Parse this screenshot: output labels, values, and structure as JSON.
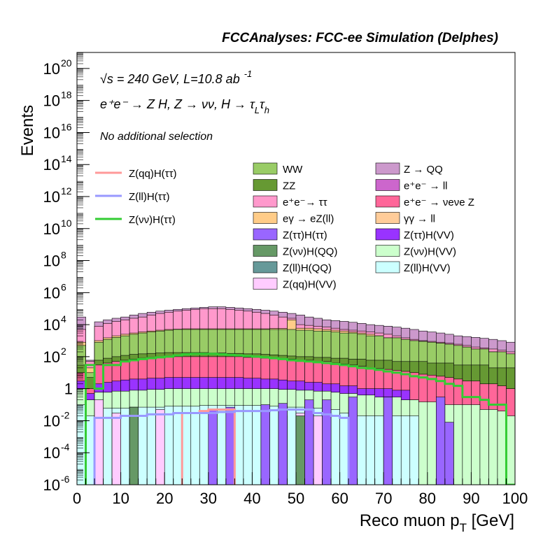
{
  "header_title": "FCCAnalyses: FCC-ee Simulation (Delphes)",
  "annotations": {
    "energy_sqrt": "√s",
    "energy_text": " = 240 GeV, L=10.8 ab",
    "lumi_exp": "-1",
    "process": "e⁺e⁻ → Z H, Z → νν, H → τ",
    "process_sub_L": "L",
    "process_tau2": "τ",
    "process_sub_h": "h",
    "selection": "No additional selection"
  },
  "chart_data": {
    "type": "histogram",
    "title": "FCCAnalyses: FCC-ee Simulation (Delphes)",
    "xlabel": "Reco muon p",
    "xlabel_sub": "T",
    "xlabel_unit": " [GeV]",
    "ylabel": "Events",
    "xlim": [
      0,
      100
    ],
    "ylim": [
      1e-06,
      1e+21
    ],
    "log_y": true,
    "grid": false,
    "bin_width": 2,
    "x_ticks": [
      "0",
      "10",
      "20",
      "30",
      "40",
      "50",
      "60",
      "70",
      "80",
      "90",
      "100"
    ],
    "y_ticks": [
      {
        "base": "10",
        "exp": "-6",
        "v": 1e-06
      },
      {
        "base": "10",
        "exp": "-4",
        "v": 0.0001
      },
      {
        "base": "10",
        "exp": "-2",
        "v": 0.01
      },
      {
        "base": "1",
        "exp": "",
        "v": 1
      },
      {
        "base": "10",
        "exp": "2",
        "v": 100.0
      },
      {
        "base": "10",
        "exp": "4",
        "v": 10000.0
      },
      {
        "base": "10",
        "exp": "6",
        "v": 1000000.0
      },
      {
        "base": "10",
        "exp": "8",
        "v": 100000000.0
      },
      {
        "base": "10",
        "exp": "10",
        "v": 10000000000.0
      },
      {
        "base": "10",
        "exp": "12",
        "v": 1000000000000.0
      },
      {
        "base": "10",
        "exp": "14",
        "v": 100000000000000.0
      },
      {
        "base": "10",
        "exp": "16",
        "v": 1e+16
      },
      {
        "base": "10",
        "exp": "18",
        "v": 1e+18
      },
      {
        "base": "10",
        "exp": "20",
        "v": 1e+20
      }
    ],
    "stack_totals": [
      {
        "name": "Z(ll)H(VV)",
        "color": "#ccffff",
        "values": [
          0.1,
          0.02,
          0.06,
          0.06,
          0.06,
          0.06,
          0.07,
          0.07,
          0.07,
          0.07,
          0.08,
          0.08,
          0.08,
          0.08,
          0.09,
          0.09,
          0.09,
          0.09,
          0.09,
          0.09,
          0.09,
          0.08,
          0.08,
          0.08,
          0.07,
          0.07,
          0.06,
          0.06,
          0.05,
          0.05,
          0.03,
          0.03,
          0.02,
          0.02,
          0.02,
          0.02,
          0.02,
          0.02,
          0.02,
          null,
          null,
          null,
          null,
          null,
          null,
          null,
          null,
          null,
          null,
          null
        ]
      },
      {
        "name": "Z(νν)H(VV)",
        "color": "#ccffcc",
        "values": [
          1,
          0.2,
          0.6,
          0.6,
          0.7,
          0.7,
          0.8,
          0.8,
          0.9,
          0.9,
          1,
          1,
          1,
          1,
          1,
          1,
          1,
          1,
          1,
          1,
          1,
          1,
          1,
          0.9,
          0.9,
          0.8,
          0.8,
          0.7,
          0.7,
          0.6,
          0.5,
          0.5,
          0.4,
          0.4,
          0.3,
          0.3,
          0.3,
          0.2,
          0.2,
          0.15,
          0.15,
          0.12,
          0.1,
          0.1,
          0.1,
          0.1,
          0.05,
          0.05,
          0.04,
          0.02
        ]
      },
      {
        "name": "Z(ττ)H(VV)",
        "color": "#9933ff",
        "values": [
          3,
          0.5,
          2,
          2.5,
          3,
          3.5,
          4,
          4,
          4.5,
          4.5,
          5,
          5,
          5,
          5,
          5,
          5,
          5,
          5,
          5,
          4.5,
          4.5,
          4,
          4,
          3.5,
          3,
          3,
          2.5,
          2.5,
          2,
          2,
          1.5,
          1.5,
          1,
          1,
          1,
          1,
          0.8,
          0.8,
          0.2,
          0.1,
          0.1,
          0.1,
          0.05,
          0.05,
          0.05,
          0.02,
          0.01,
          0.01,
          0.01,
          0.01
        ]
      },
      {
        "name": "e⁺e⁻ → νeνe Z",
        "color": "#ff6699",
        "values": [
          10,
          1,
          30,
          40,
          50,
          60,
          70,
          80,
          90,
          100,
          100,
          100,
          100,
          100,
          100,
          100,
          100,
          100,
          100,
          90,
          90,
          80,
          80,
          70,
          70,
          60,
          60,
          50,
          50,
          40,
          35,
          30,
          25,
          20,
          18,
          16,
          14,
          12,
          10,
          8,
          7,
          6,
          5,
          4,
          3,
          3,
          2,
          2,
          1.5,
          1
        ]
      },
      {
        "name": "ZZ",
        "color": "#669933",
        "values": [
          30,
          5,
          60,
          80,
          100,
          120,
          140,
          150,
          160,
          170,
          180,
          180,
          180,
          180,
          180,
          170,
          170,
          160,
          160,
          150,
          150,
          140,
          130,
          120,
          110,
          100,
          100,
          90,
          90,
          80,
          80,
          70,
          70,
          60,
          60,
          60,
          50,
          50,
          50,
          50,
          40,
          40,
          40,
          30,
          30,
          30,
          30,
          20,
          20,
          20
        ]
      },
      {
        "name": "WW",
        "color": "#99cc66",
        "values": [
          500,
          10,
          800,
          1200,
          1600,
          2000,
          2500,
          3000,
          3500,
          4000,
          4500,
          5000,
          5000,
          5000,
          5000,
          5000,
          5000,
          5000,
          5000,
          5000,
          5000,
          5000,
          5000,
          5000,
          5000,
          4500,
          4500,
          4000,
          4000,
          3500,
          3000,
          3000,
          2500,
          2000,
          2000,
          1500,
          1500,
          1200,
          1000,
          900,
          800,
          700,
          600,
          500,
          400,
          300,
          300,
          200,
          200,
          150
        ]
      },
      {
        "name": "eγ → eZ(ll)",
        "color": "#ffcc88",
        "values": [
          800,
          20,
          1000,
          1500,
          2000,
          2500,
          3000,
          3500,
          4000,
          4500,
          5000,
          5200,
          5500,
          5500,
          5500,
          5500,
          5500,
          5500,
          5500,
          5500,
          5500,
          5500,
          5800,
          5800,
          20000,
          6000,
          6000,
          5500,
          5000,
          4500,
          4000,
          3500,
          3000,
          2500,
          2000,
          1500,
          1500,
          1200,
          1000,
          900,
          800,
          700,
          600,
          500,
          400,
          300,
          300,
          200,
          200,
          150
        ]
      },
      {
        "name": "e⁺e⁻ → ττ",
        "color": "#ff99cc",
        "values": [
          5000,
          50,
          8000,
          12000,
          16000,
          20000,
          25000,
          30000,
          40000,
          50000,
          60000,
          70000,
          80000,
          90000,
          100000,
          100000,
          100000,
          90000,
          80000,
          70000,
          60000,
          50000,
          40000,
          30000,
          25000,
          10000,
          9000,
          8000,
          7000,
          6000,
          5000,
          4500,
          4000,
          3500,
          3000,
          2500,
          2000,
          1500,
          1200,
          1000,
          900,
          800,
          700,
          600,
          500,
          400,
          350,
          300,
          250,
          200
        ]
      },
      {
        "name": "Z → QQ",
        "color": "#cc99cc",
        "values": [
          30000,
          60,
          15000,
          20000,
          25000,
          30000,
          40000,
          50000,
          60000,
          70000,
          80000,
          90000,
          100000,
          110000,
          120000,
          130000,
          130000,
          120000,
          110000,
          100000,
          90000,
          80000,
          70000,
          60000,
          50000,
          40000,
          30000,
          25000,
          20000,
          18000,
          16000,
          14000,
          12000,
          10000,
          9000,
          8000,
          7000,
          6000,
          5000,
          4000,
          3500,
          3000,
          2500,
          2000,
          1800,
          1600,
          1400,
          1200,
          1000,
          800
        ]
      }
    ],
    "overlay_bins": [
      {
        "name": "Z(qq)H(VV)",
        "color": "#ffccff",
        "bins": [
          {
            "x": 4,
            "v": 0.2
          },
          {
            "x": 8,
            "v": 0.03
          },
          {
            "x": 18,
            "v": 0.05
          },
          {
            "x": 50,
            "v": 0.03
          },
          {
            "x": 54,
            "v": 0.02
          }
        ]
      },
      {
        "name": "Z(νν)H(QQ)",
        "color": "#669966",
        "bins": [
          {
            "x": 12,
            "v": 0.07
          },
          {
            "x": 46,
            "v": 0.02
          },
          {
            "x": 50,
            "v": 0.02
          }
        ]
      },
      {
        "name": "Z(ll)H(QQ)",
        "color": "#669999",
        "bins": []
      },
      {
        "name": "Z(ττ)H(ττ)",
        "color": "#9966ff",
        "bins": [
          {
            "x": 30,
            "v": 0.05
          },
          {
            "x": 34,
            "v": 0.07
          },
          {
            "x": 42,
            "v": 0.1
          },
          {
            "x": 46,
            "v": 0.12
          },
          {
            "x": 52,
            "v": 0.2
          },
          {
            "x": 56,
            "v": 0.2
          },
          {
            "x": 62,
            "v": 0.3
          },
          {
            "x": 70,
            "v": 0.3
          },
          {
            "x": 82,
            "v": 0.3
          },
          {
            "x": 84,
            "v": 0.008
          }
        ]
      }
    ],
    "lines": [
      {
        "name": "Z(qq)H(ττ)",
        "color": "#ff9999",
        "values": [
          null,
          null,
          null,
          null,
          null,
          null,
          null,
          null,
          null,
          null,
          null,
          null,
          null,
          null,
          null,
          null,
          null,
          null,
          null,
          null,
          null,
          null,
          null,
          null,
          null,
          null,
          null,
          null,
          null,
          null,
          null,
          null,
          null,
          null,
          null,
          null,
          null,
          null,
          null,
          null,
          null,
          null,
          null,
          null,
          null,
          null,
          null,
          null,
          null,
          null
        ],
        "segments": [
          [
            24,
            0.03
          ],
          [
            26,
            0.03
          ],
          [
            28,
            0.04
          ],
          [
            30,
            0.05
          ],
          [
            32,
            0.05
          ],
          [
            34,
            0.05
          ]
        ]
      },
      {
        "name": "Z(ll)H(ττ)",
        "color": "#9999ff",
        "points": [
          [
            4,
            0.015
          ],
          [
            6,
            0.015
          ],
          [
            8,
            0.015
          ],
          [
            10,
            0.02
          ],
          [
            12,
            0.02
          ],
          [
            14,
            0.02
          ],
          [
            16,
            0.025
          ],
          [
            18,
            0.025
          ],
          [
            20,
            0.025
          ],
          [
            22,
            0.03
          ],
          [
            24,
            0.03
          ],
          [
            26,
            0.03
          ],
          [
            28,
            0.03
          ],
          [
            30,
            0.03
          ],
          [
            32,
            0.035
          ],
          [
            34,
            0.035
          ],
          [
            36,
            0.04
          ],
          [
            38,
            0.04
          ],
          [
            40,
            0.04
          ],
          [
            42,
            0.04
          ],
          [
            44,
            0.045
          ],
          [
            46,
            0.05
          ],
          [
            48,
            0.05
          ],
          [
            50,
            0.05
          ],
          [
            52,
            0.05
          ],
          [
            54,
            0.03
          ],
          [
            56,
            0.025
          ],
          [
            58,
            0.02
          ],
          [
            60,
            0.015
          ]
        ]
      },
      {
        "name": "Z(νν)H(ττ)",
        "color": "#33cc33",
        "points": [
          [
            2,
            30
          ],
          [
            4,
            1
          ],
          [
            6,
            30
          ],
          [
            8,
            30
          ],
          [
            10,
            50
          ],
          [
            12,
            60
          ],
          [
            14,
            70
          ],
          [
            16,
            80
          ],
          [
            18,
            90
          ],
          [
            20,
            100
          ],
          [
            22,
            120
          ],
          [
            24,
            140
          ],
          [
            26,
            150
          ],
          [
            28,
            150
          ],
          [
            30,
            150
          ],
          [
            32,
            140
          ],
          [
            34,
            130
          ],
          [
            36,
            120
          ],
          [
            38,
            110
          ],
          [
            40,
            100
          ],
          [
            42,
            90
          ],
          [
            44,
            80
          ],
          [
            46,
            70
          ],
          [
            48,
            60
          ],
          [
            50,
            55
          ],
          [
            52,
            50
          ],
          [
            54,
            45
          ],
          [
            56,
            40
          ],
          [
            58,
            35
          ],
          [
            60,
            30
          ],
          [
            62,
            25
          ],
          [
            64,
            20
          ],
          [
            66,
            18
          ],
          [
            68,
            15
          ],
          [
            70,
            12
          ],
          [
            72,
            10
          ],
          [
            74,
            8
          ],
          [
            76,
            6
          ],
          [
            78,
            5
          ],
          [
            80,
            4
          ],
          [
            82,
            3
          ],
          [
            84,
            2
          ],
          [
            86,
            1.5
          ],
          [
            88,
            0.3
          ],
          [
            90,
            0.3
          ],
          [
            92,
            0.2
          ],
          [
            94,
            0.1
          ],
          [
            96,
            0.1
          ],
          [
            98,
            1e-06
          ]
        ]
      }
    ],
    "legend_left": [
      {
        "name": "Z(qq)H(ττ)",
        "color": "#ff9999"
      },
      {
        "name": "Z(ll)H(ττ)",
        "color": "#9999ff"
      },
      {
        "name": "Z(νν)H(ττ)",
        "color": "#33cc33"
      }
    ],
    "legend_mid": [
      {
        "name": "WW",
        "color": "#99cc66"
      },
      {
        "name": "ZZ",
        "color": "#669933"
      },
      {
        "name": "e⁺e⁻→ ττ",
        "color": "#ff99cc"
      },
      {
        "name": "eγ → eZ(ll)",
        "color": "#ffcc88"
      },
      {
        "name": "Z(ττ)H(ττ)",
        "color": "#9966ff"
      },
      {
        "name": "Z(νν)H(QQ)",
        "color": "#669966"
      },
      {
        "name": "Z(ll)H(QQ)",
        "color": "#669999"
      },
      {
        "name": "Z(qq)H(VV)",
        "color": "#ffccff"
      }
    ],
    "legend_right": [
      {
        "name": "Z → QQ",
        "color": "#cc99cc"
      },
      {
        "name": "e⁺e⁻ → ll",
        "color": "#cc66cc"
      },
      {
        "name": "e⁺e⁻ → νeνe Z",
        "color": "#ff6699"
      },
      {
        "name": "γγ → ll",
        "color": "#ffcc99"
      },
      {
        "name": "Z(ττ)H(VV)",
        "color": "#9933ff"
      },
      {
        "name": "Z(νν)H(VV)",
        "color": "#ccffcc"
      },
      {
        "name": "Z(ll)H(VV)",
        "color": "#ccffff"
      }
    ]
  }
}
